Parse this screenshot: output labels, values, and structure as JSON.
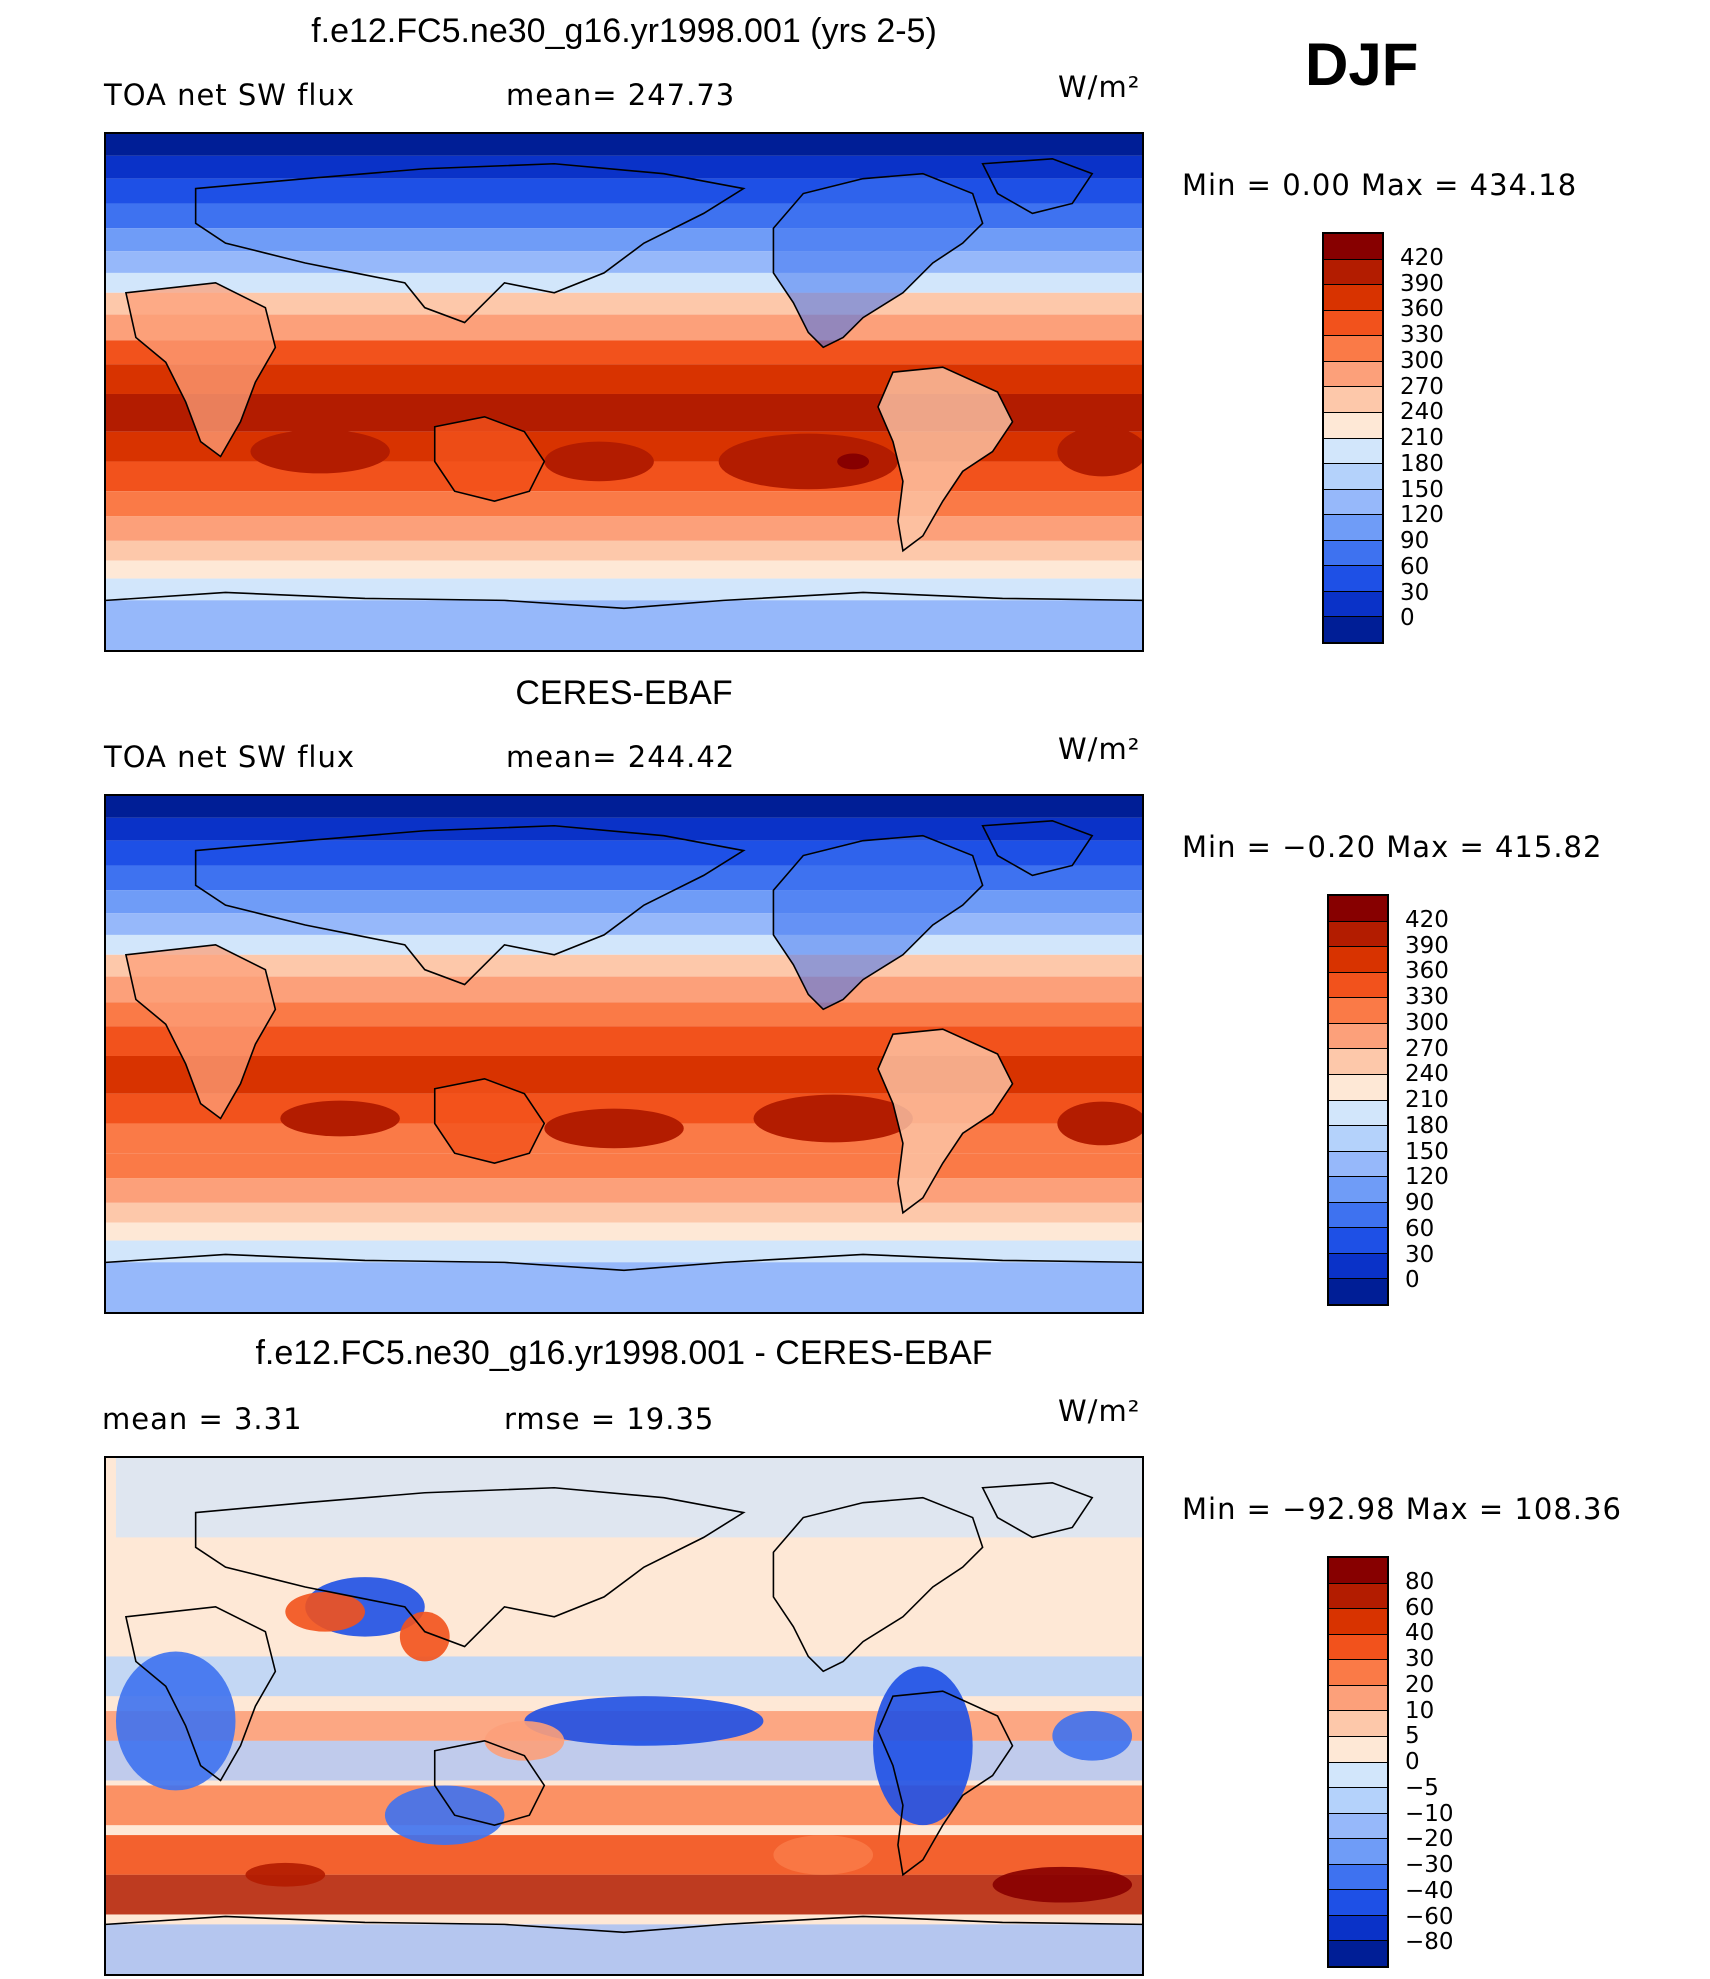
{
  "season": "DJF",
  "units": "W/m²",
  "panels": [
    {
      "title": "f.e12.FC5.ne30_g16.yr1998.001 (yrs 2-5)",
      "left_label": "TOA net SW flux",
      "center_label": "mean= 247.73",
      "units": "W/m²",
      "minmax": "Min =    0.00  Max  =  434.18",
      "type": "model"
    },
    {
      "title": "CERES-EBAF",
      "left_label": "TOA net SW flux",
      "center_label": "mean= 244.42",
      "units": "W/m²",
      "minmax": "Min =   −0.20  Max  =  415.82",
      "type": "obs"
    },
    {
      "title": "f.e12.FC5.ne30_g16.yr1998.001 - CERES-EBAF",
      "left_label": "mean =     3.31",
      "center_label": "rmse =    19.35",
      "units": "W/m²",
      "minmax": "Min  = −92.98  Max  =  108.36",
      "type": "diff"
    }
  ],
  "colorbar_abs": {
    "labels": [
      "420",
      "390",
      "360",
      "330",
      "300",
      "270",
      "240",
      "210",
      "180",
      "150",
      "120",
      "90",
      "60",
      "30",
      "0"
    ],
    "colors": [
      "#870000",
      "#b31c00",
      "#d83300",
      "#f2521c",
      "#fa7a47",
      "#fca07a",
      "#fdc8aa",
      "#fee8d6",
      "#d2e6fb",
      "#b4d2fb",
      "#96b8fa",
      "#6f9cf7",
      "#3e72f0",
      "#1e50e6",
      "#0a32c8",
      "#001e96"
    ]
  },
  "colorbar_diff": {
    "labels": [
      "80",
      "60",
      "40",
      "30",
      "20",
      "10",
      "5",
      "0",
      "−5",
      "−10",
      "−20",
      "−30",
      "−40",
      "−60",
      "−80"
    ],
    "colors": [
      "#870000",
      "#b31c00",
      "#d83300",
      "#f2521c",
      "#fa7a47",
      "#fca07a",
      "#fdc8aa",
      "#fee8d6",
      "#d2e6fb",
      "#b4d2fb",
      "#96b8fa",
      "#6f9cf7",
      "#3e72f0",
      "#1e50e6",
      "#0a32c8",
      "#001e96"
    ]
  }
}
